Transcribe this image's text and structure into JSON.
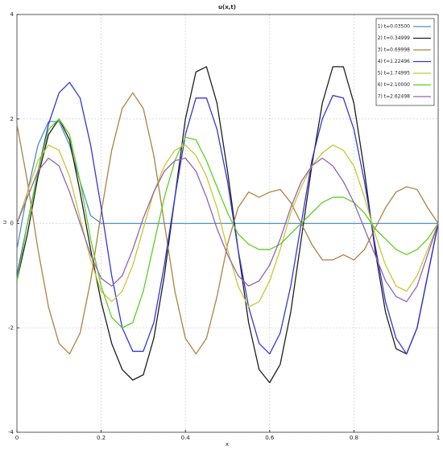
{
  "chart_data": {
    "type": "line",
    "title": "u(x,t)",
    "x_label": "x",
    "y_label": "u",
    "x": [
      0,
      0.025,
      0.05,
      0.075,
      0.1,
      0.125,
      0.15,
      0.175,
      0.2,
      0.225,
      0.25,
      0.275,
      0.3,
      0.325,
      0.35,
      0.375,
      0.4,
      0.425,
      0.45,
      0.475,
      0.5,
      0.525,
      0.55,
      0.575,
      0.6,
      0.625,
      0.65,
      0.675,
      0.7,
      0.725,
      0.75,
      0.775,
      0.8,
      0.825,
      0.85,
      0.875,
      0.9,
      0.925,
      0.95,
      0.975,
      1
    ],
    "series": [
      {
        "name": "1) t=0.03500",
        "color": "#4f8fbf",
        "values": [
          -0.5,
          0.6,
          1.5,
          1.95,
          1.95,
          1.5,
          0.8,
          0.15,
          0,
          0,
          0,
          0,
          0,
          0,
          0,
          0,
          0,
          0,
          0,
          0,
          0,
          0,
          0,
          0,
          0,
          0,
          0,
          0,
          0,
          0,
          0,
          0,
          0,
          0,
          0,
          0,
          0,
          0,
          0,
          0,
          0
        ]
      },
      {
        "name": "2) t=0.34999",
        "color": "#1e1e1e",
        "values": [
          -1.1,
          -0.2,
          0.9,
          1.7,
          2.0,
          1.6,
          0.6,
          -0.5,
          -1.5,
          -2.3,
          -2.8,
          -3.0,
          -2.9,
          -2.2,
          -1.0,
          0.5,
          2.0,
          2.9,
          3.0,
          2.3,
          1.0,
          -0.5,
          -1.9,
          -2.8,
          -3.05,
          -2.7,
          -1.7,
          -0.3,
          1.1,
          2.3,
          3.0,
          3.0,
          2.3,
          1.0,
          -0.5,
          -1.7,
          -2.4,
          -2.5,
          -2.0,
          -1.0,
          0
        ]
      },
      {
        "name": "3) t=0.69998",
        "color": "#b08040",
        "values": [
          1.9,
          0.8,
          -0.5,
          -1.6,
          -2.3,
          -2.5,
          -2.1,
          -1.1,
          0.2,
          1.4,
          2.2,
          2.5,
          2.2,
          1.3,
          0,
          -1.3,
          -2.2,
          -2.5,
          -2.2,
          -1.4,
          -0.4,
          0.3,
          0.6,
          0.5,
          0.6,
          0.65,
          0.4,
          0,
          -0.4,
          -0.7,
          -0.7,
          -0.6,
          -0.7,
          -0.5,
          -0.1,
          0.3,
          0.6,
          0.7,
          0.65,
          0.3,
          0
        ]
      },
      {
        "name": "4) t=1.22496",
        "color": "#3636d6",
        "values": [
          -1.0,
          0,
          1.0,
          1.9,
          2.5,
          2.7,
          2.4,
          1.5,
          0.3,
          -1.0,
          -2.0,
          -2.45,
          -2.45,
          -1.9,
          -0.8,
          0.5,
          1.7,
          2.4,
          2.4,
          1.8,
          0.8,
          -0.5,
          -1.6,
          -2.3,
          -2.5,
          -2.1,
          -1.2,
          0,
          1.2,
          2.0,
          2.45,
          2.4,
          1.8,
          0.8,
          -0.4,
          -1.5,
          -2.2,
          -2.5,
          -2.0,
          -1.0,
          0
        ]
      },
      {
        "name": "5) t=1.74995",
        "color": "#c8c832",
        "values": [
          0,
          0.6,
          1.2,
          1.5,
          1.4,
          0.9,
          0.1,
          -0.7,
          -1.3,
          -1.5,
          -1.3,
          -0.8,
          -0.1,
          0.6,
          1.1,
          1.4,
          1.5,
          1.3,
          0.9,
          0.3,
          -0.5,
          -1.2,
          -1.6,
          -1.5,
          -1.1,
          -0.5,
          0.2,
          0.7,
          1.1,
          1.35,
          1.5,
          1.4,
          1.1,
          0.5,
          -0.2,
          -0.8,
          -1.2,
          -1.3,
          -1.0,
          -0.5,
          0
        ]
      },
      {
        "name": "6) t=2.10000",
        "color": "#5ecf22",
        "values": [
          -1.1,
          0,
          1.0,
          1.8,
          2.0,
          1.7,
          0.8,
          -0.3,
          -1.2,
          -1.8,
          -2.0,
          -1.9,
          -1.3,
          -0.4,
          0.5,
          1.2,
          1.65,
          1.6,
          1.2,
          0.7,
          0.2,
          -0.2,
          -0.4,
          -0.5,
          -0.5,
          -0.4,
          -0.2,
          0,
          0.2,
          0.4,
          0.5,
          0.5,
          0.4,
          0.2,
          -0.1,
          -0.3,
          -0.5,
          -0.6,
          -0.5,
          -0.3,
          0
        ]
      },
      {
        "name": "7) t=2.62498",
        "color": "#9462b2",
        "values": [
          0,
          0.5,
          1.0,
          1.25,
          1.1,
          0.6,
          0,
          -0.6,
          -1.05,
          -1.2,
          -1.0,
          -0.5,
          0.1,
          0.6,
          1.0,
          1.2,
          1.25,
          1.0,
          0.5,
          -0.1,
          -0.6,
          -1.0,
          -1.2,
          -1.1,
          -0.8,
          -0.3,
          0.3,
          0.8,
          1.1,
          1.25,
          1.1,
          0.8,
          0.4,
          -0.1,
          -0.6,
          -1.1,
          -1.4,
          -1.5,
          -1.2,
          -0.6,
          0
        ]
      }
    ],
    "xlim": [
      0,
      1
    ],
    "ylim": [
      -4,
      4
    ],
    "xticks": [
      0,
      0.2,
      0.4,
      0.6,
      0.8,
      1
    ],
    "yticks": [
      -4,
      -2,
      0,
      2,
      4
    ],
    "grid": true,
    "legend": "upper right"
  }
}
